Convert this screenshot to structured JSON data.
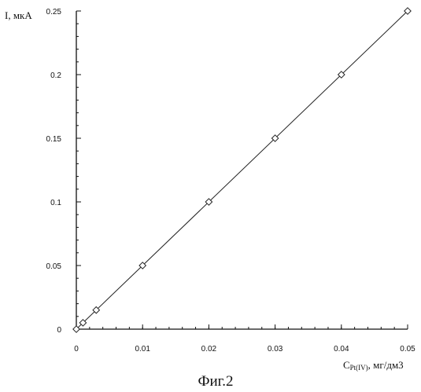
{
  "chart_data": {
    "type": "scatter",
    "title": "",
    "caption": "Фиг.2",
    "xlabel_main": "C",
    "xlabel_sub": "Pt(IV)",
    "xlabel_unit": ", мг/дм3",
    "ylabel": "I, мкА",
    "xlim": [
      0,
      0.05
    ],
    "ylim": [
      0,
      0.25
    ],
    "x_ticks": [
      0,
      0.01,
      0.02,
      0.03,
      0.04,
      0.05
    ],
    "x_tick_labels": [
      "0",
      "0.01",
      "0.02",
      "0.03",
      "0.04",
      "0.05"
    ],
    "y_ticks": [
      0,
      0.05,
      0.1,
      0.15,
      0.2,
      0.25
    ],
    "y_tick_labels": [
      "0",
      "0.05",
      "0.1",
      "0.15",
      "0.2",
      "0.25"
    ],
    "x_minor_step": 0.002,
    "y_minor_step": 0.01,
    "grid": false,
    "marker": "diamond",
    "series": [
      {
        "points": [
          {
            "x": 0,
            "y": 0
          },
          {
            "x": 0.001,
            "y": 0.005
          },
          {
            "x": 0.003,
            "y": 0.015
          },
          {
            "x": 0.01,
            "y": 0.05
          },
          {
            "x": 0.02,
            "y": 0.1
          },
          {
            "x": 0.03,
            "y": 0.15
          },
          {
            "x": 0.04,
            "y": 0.2
          },
          {
            "x": 0.05,
            "y": 0.25
          }
        ],
        "fit_line": {
          "x0": 0,
          "y0": 0,
          "x1": 0.05,
          "y1": 0.25
        }
      }
    ]
  }
}
